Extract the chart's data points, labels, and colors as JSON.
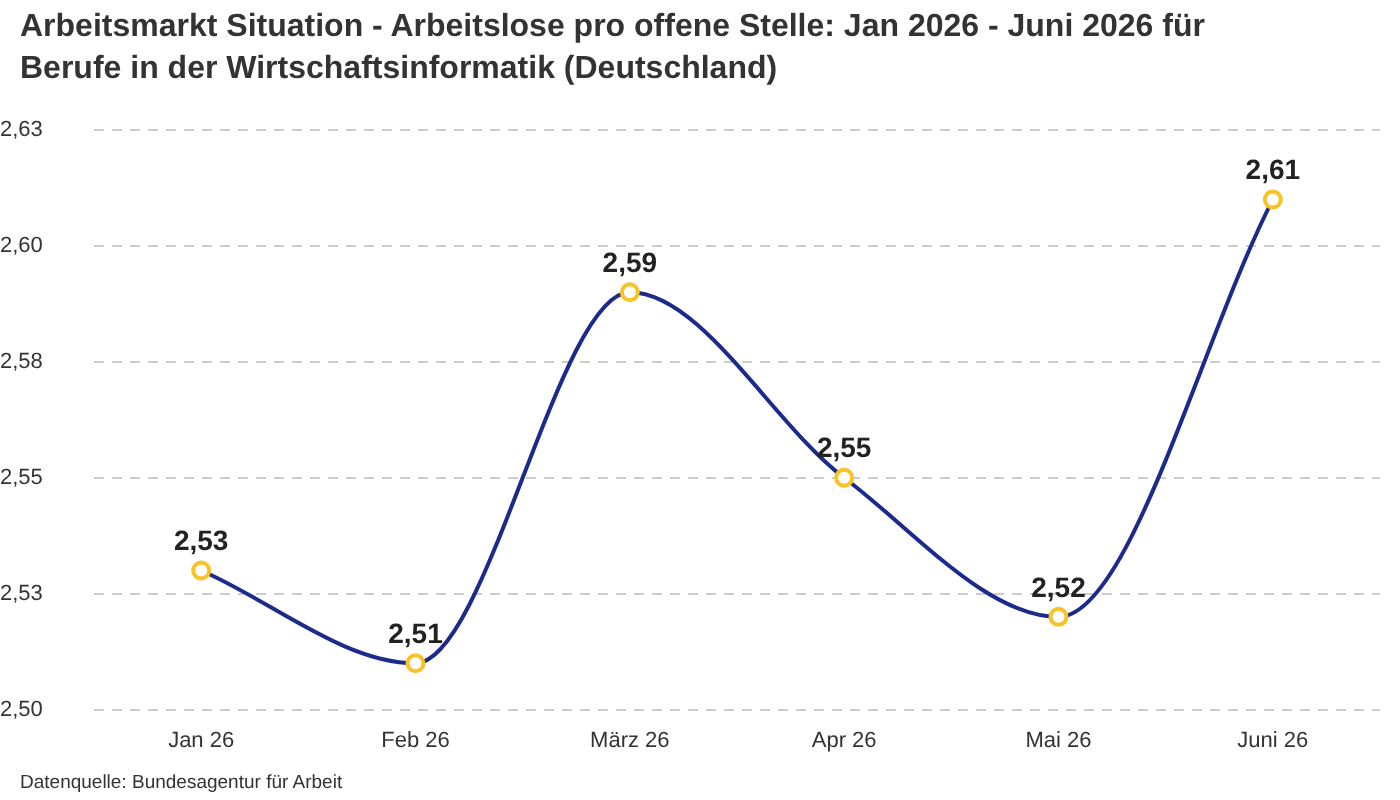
{
  "chart_data": {
    "type": "line",
    "title": "Arbeitsmarkt Situation - Arbeitslose pro offene Stelle: Jan 2026 - Juni 2026 für Berufe in der Wirtschaftsinformatik (Deutschland)",
    "annotations": [
      "Datenquelle: Bundesagentur für Arbeit"
    ],
    "categories": [
      "Jan 26",
      "Feb 26",
      "März 26",
      "Apr 26",
      "Mai 26",
      "Juni 26"
    ],
    "series": [
      {
        "color": "#1c2a8c",
        "colors": [
          "#f7c325",
          "#f7c325",
          "#f7c325",
          "#f7c325",
          "#f7c325",
          "#f7c325"
        ],
        "values": [
          2.53,
          2.51,
          2.59,
          2.55,
          2.52,
          2.61
        ],
        "value_labels": [
          "2,53",
          "2,51",
          "2,59",
          "2,55",
          "2,52",
          "2,61"
        ]
      }
    ],
    "ylim": [
      2.5,
      2.625
    ],
    "yticks": [
      {
        "value": 2.5,
        "label": "2,50"
      },
      {
        "value": 2.525,
        "label": "2,53"
      },
      {
        "value": 2.55,
        "label": "2,55"
      },
      {
        "value": 2.575,
        "label": "2,58"
      },
      {
        "value": 2.6,
        "label": "2,60"
      },
      {
        "value": 2.625,
        "label": "2,63"
      }
    ],
    "grid": "y",
    "legend": false,
    "marker": "circle",
    "line_style": "solid"
  }
}
